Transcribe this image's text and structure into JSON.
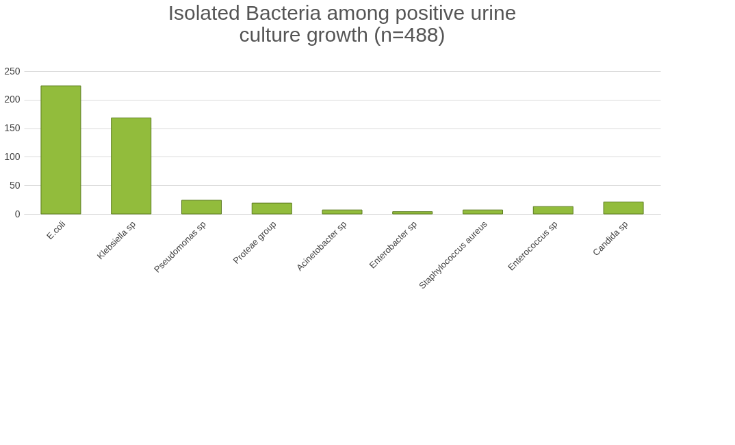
{
  "chart_data": {
    "type": "bar",
    "title": "Isolated Bacteria among positive urine culture growth (n=488)",
    "categories": [
      "E.coli",
      "Klebsiella sp",
      "Pseudomonas sp",
      "Proteae group",
      "Acinetobacter sp",
      "Enterobacter sp",
      "Staphylococcus aureus",
      "Enterococcus sp",
      "Candida sp"
    ],
    "values": [
      224,
      168,
      24,
      19,
      7,
      4,
      7,
      13,
      21
    ],
    "color": "#92bc3c",
    "ylim": [
      0,
      250
    ],
    "yticks": [
      0,
      50,
      100,
      150,
      200,
      250
    ],
    "grid": "y"
  }
}
